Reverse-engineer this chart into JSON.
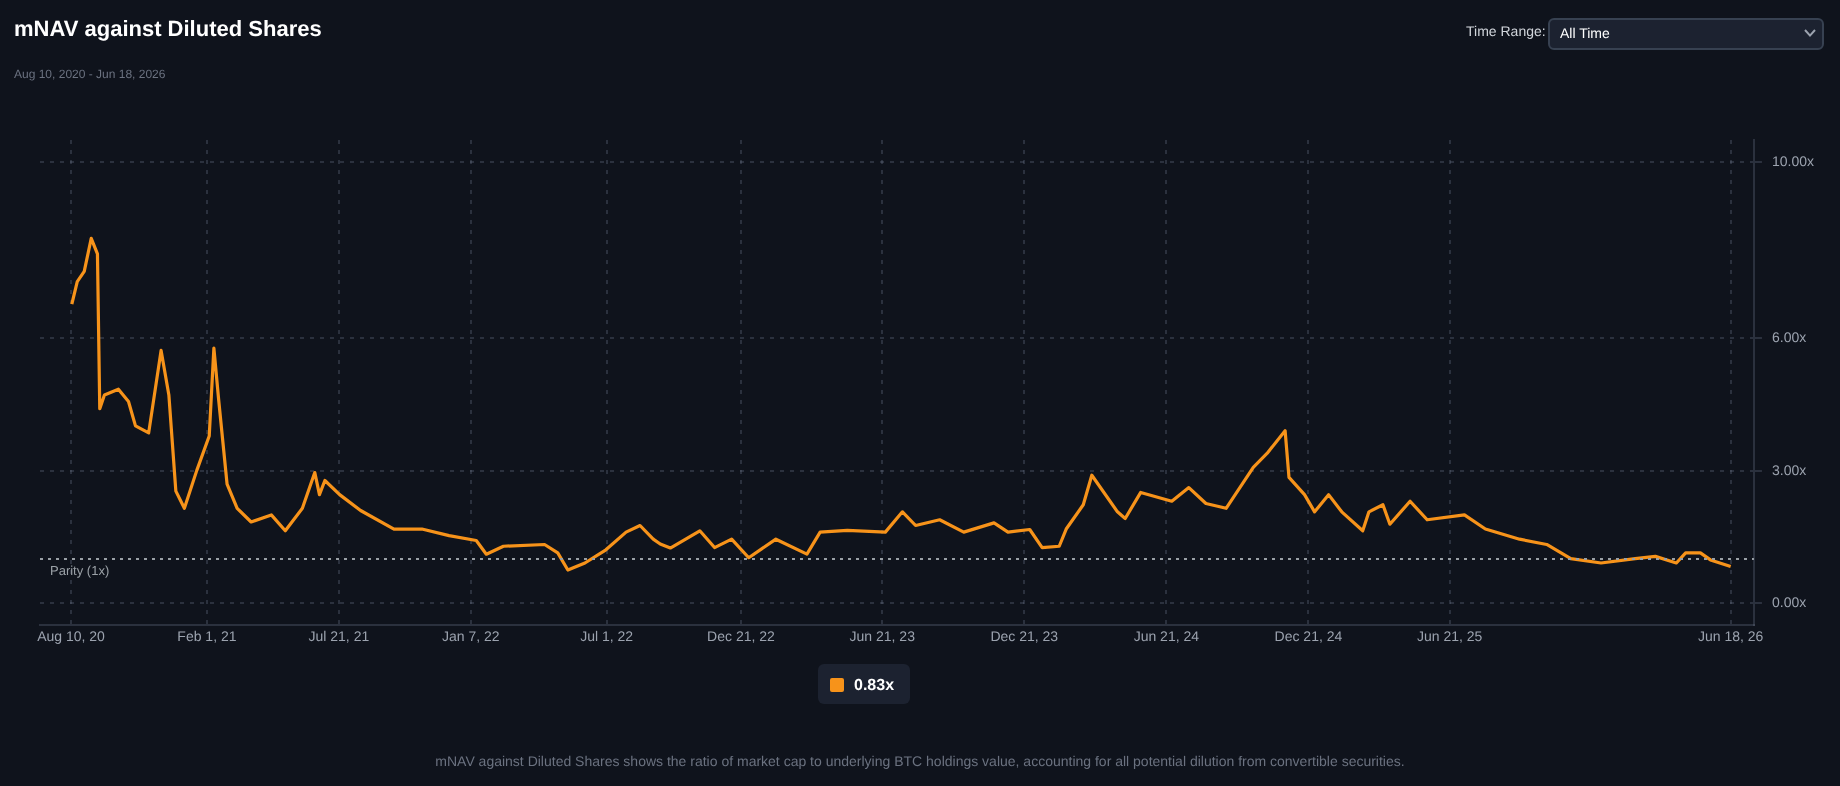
{
  "chart_data": {
    "type": "line",
    "title": "mNAV against Diluted Shares",
    "subtitle": "Aug 10, 2020 - Jun 18, 2026",
    "annotations": [
      "Time Range:",
      "All Time",
      "0.83x",
      "mNAV against Diluted Shares shows the ratio of market cap to underlying BTC holdings value, accounting for all potential dilution from convertible securities."
    ],
    "x": [
      "2020-08-11",
      "2020-08-18",
      "2020-08-27",
      "2020-09-05",
      "2020-09-13",
      "2020-09-16",
      "2020-09-22",
      "2020-10-10",
      "2020-10-23",
      "2020-11-01",
      "2020-11-18",
      "2020-12-04",
      "2020-12-14",
      "2020-12-23",
      "2021-01-03",
      "2021-01-19",
      "2021-02-04",
      "2021-02-10",
      "2021-02-16",
      "2021-02-27",
      "2021-03-12",
      "2021-03-30",
      "2021-04-25",
      "2021-05-13",
      "2021-06-04",
      "2021-06-20",
      "2021-06-26",
      "2021-07-03",
      "2021-07-22",
      "2021-08-18",
      "2021-09-30",
      "2021-11-05",
      "2021-12-10",
      "2022-01-14",
      "2022-01-27",
      "2022-02-18",
      "2022-04-12",
      "2022-04-29",
      "2022-05-12",
      "2022-06-03",
      "2022-06-30",
      "2022-07-26",
      "2022-08-13",
      "2022-08-30",
      "2022-09-08",
      "2022-09-21",
      "2022-10-29",
      "2022-11-17",
      "2022-12-09",
      "2022-12-31",
      "2023-02-04",
      "2023-03-16",
      "2023-04-02",
      "2023-05-07",
      "2023-06-25",
      "2023-07-17",
      "2023-08-03",
      "2023-09-03",
      "2023-10-04",
      "2023-11-12",
      "2023-11-30",
      "2023-12-28",
      "2024-01-13",
      "2024-02-04",
      "2024-02-13",
      "2024-03-06",
      "2024-03-17",
      "2024-04-19",
      "2024-04-29",
      "2024-05-19",
      "2024-06-28",
      "2024-07-20",
      "2024-08-11",
      "2024-09-06",
      "2024-10-11",
      "2024-10-29",
      "2024-11-21",
      "2024-11-26",
      "2024-12-16",
      "2024-12-29",
      "2025-01-16",
      "2025-02-02",
      "2025-03-01",
      "2025-03-09",
      "2025-03-27",
      "2025-04-05",
      "2025-05-01",
      "2025-05-23",
      "2025-07-10",
      "2025-08-06",
      "2025-09-19",
      "2025-10-24",
      "2025-11-24",
      "2026-01-02",
      "2026-02-15",
      "2026-03-13",
      "2026-04-09",
      "2026-04-21",
      "2026-05-10",
      "2026-05-23",
      "2026-06-18"
    ],
    "series": [
      {
        "color": "#f7931a",
        "values": [
          6.78,
          7.29,
          7.52,
          8.27,
          7.92,
          4.41,
          4.72,
          4.85,
          4.57,
          4.02,
          3.86,
          5.73,
          4.72,
          2.54,
          2.15,
          3.01,
          3.79,
          5.78,
          4.64,
          2.7,
          2.15,
          1.84,
          2.0,
          1.64,
          2.15,
          2.96,
          2.46,
          2.78,
          2.46,
          2.1,
          1.68,
          1.68,
          1.53,
          1.42,
          1.11,
          1.29,
          1.33,
          1.14,
          0.75,
          0.91,
          1.21,
          1.61,
          1.76,
          1.45,
          1.34,
          1.25,
          1.64,
          1.26,
          1.45,
          1.03,
          1.45,
          1.11,
          1.61,
          1.65,
          1.61,
          2.07,
          1.76,
          1.89,
          1.61,
          1.82,
          1.61,
          1.67,
          1.26,
          1.29,
          1.68,
          2.23,
          2.9,
          2.07,
          1.92,
          2.51,
          2.31,
          2.62,
          2.26,
          2.15,
          3.08,
          3.4,
          3.91,
          2.85,
          2.46,
          2.07,
          2.46,
          2.07,
          1.64,
          2.07,
          2.23,
          1.79,
          2.31,
          1.89,
          2.0,
          1.68,
          1.45,
          1.33,
          1.01,
          0.91,
          1.01,
          1.06,
          0.91,
          1.14,
          1.14,
          0.98,
          0.83
        ]
      }
    ],
    "xlim": [
      "2020-07-01",
      "2026-07-18"
    ],
    "xticks": [
      {
        "value": "2020-08-10",
        "label": "Aug 10, 20"
      },
      {
        "value": "2021-02-01",
        "label": "Feb 1, 21"
      },
      {
        "value": "2021-07-21",
        "label": "Jul 21, 21"
      },
      {
        "value": "2022-01-07",
        "label": "Jan 7, 22"
      },
      {
        "value": "2022-07-01",
        "label": "Jul 1, 22"
      },
      {
        "value": "2022-12-21",
        "label": "Dec 21, 22"
      },
      {
        "value": "2023-06-21",
        "label": "Jun 21, 23"
      },
      {
        "value": "2023-12-21",
        "label": "Dec 21, 23"
      },
      {
        "value": "2024-06-21",
        "label": "Jun 21, 24"
      },
      {
        "value": "2024-12-21",
        "label": "Dec 21, 24"
      },
      {
        "value": "2025-06-21",
        "label": "Jun 21, 25"
      },
      {
        "value": "2026-06-18",
        "label": "Jun 18, 26"
      }
    ],
    "ylim": [
      -0.5,
      10.5
    ],
    "yticks": [
      {
        "value": 0,
        "label": "0.00x"
      },
      {
        "value": 3,
        "label": "3.00x"
      },
      {
        "value": 6,
        "label": "6.00x"
      },
      {
        "value": 10,
        "label": "10.00x"
      }
    ],
    "ref_lines": [
      {
        "axis": "y",
        "value": 1,
        "label": "Parity (1x)",
        "color": "#9aa0a6",
        "line_style": "dotted"
      }
    ],
    "grid": true,
    "legend": false,
    "marker": "none",
    "line_style": "solid"
  }
}
